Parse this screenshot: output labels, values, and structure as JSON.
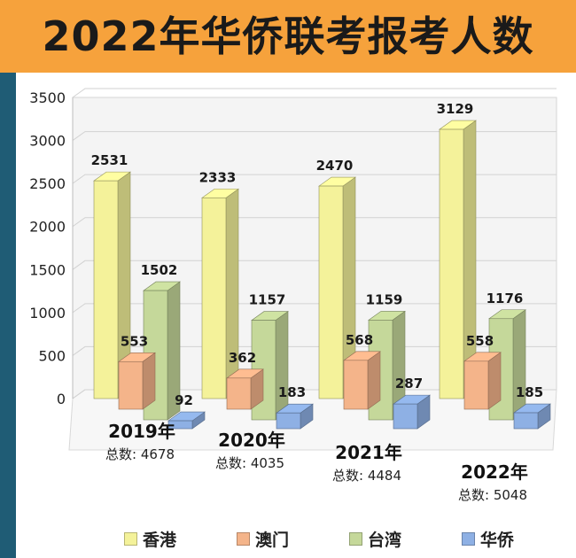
{
  "page": {
    "title": "2022年华侨联考报考人数"
  },
  "colors": {
    "banner": "#f6a23c",
    "sidebar": "#1f5c75"
  },
  "chart_data": {
    "type": "bar",
    "title": "2022年华侨联考报考人数",
    "categories": [
      "2019年",
      "2020年",
      "2021年",
      "2022年"
    ],
    "totals_label": "总数:",
    "totals": [
      "4678",
      "4035",
      "4484",
      "5048"
    ],
    "series": [
      {
        "name": "香港",
        "values": [
          2531,
          2333,
          2470,
          3129
        ],
        "color": "#f4f29a"
      },
      {
        "name": "澳门",
        "values": [
          553,
          362,
          568,
          558
        ],
        "color": "#f4b48a"
      },
      {
        "name": "台湾",
        "values": [
          1502,
          1157,
          1159,
          1176
        ],
        "color": "#c5d89a"
      },
      {
        "name": "华侨",
        "values": [
          92,
          183,
          287,
          185
        ],
        "color": "#8eb0e4"
      }
    ],
    "ylim": [
      0,
      3500
    ],
    "yticks": [
      0,
      500,
      1000,
      1500,
      2000,
      2500,
      3000,
      3500
    ],
    "grid": true,
    "legend_position": "bottom"
  }
}
